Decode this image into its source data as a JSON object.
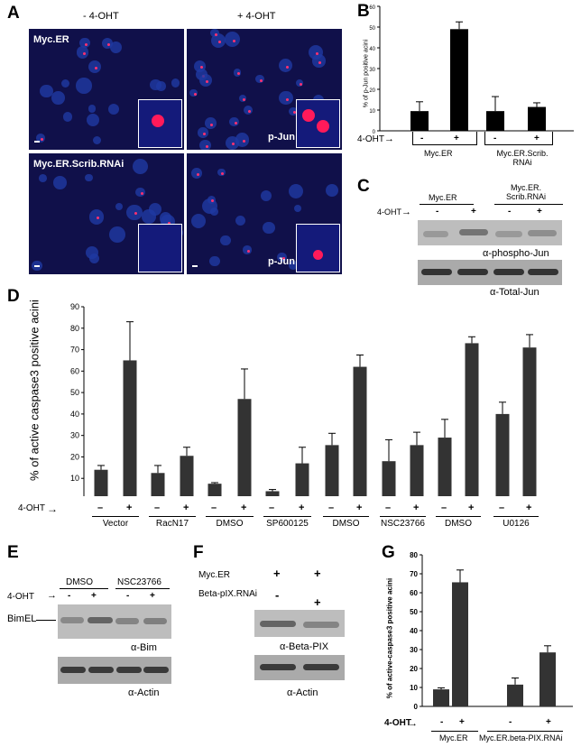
{
  "panel_letters": [
    "A",
    "B",
    "C",
    "D",
    "E",
    "F",
    "G"
  ],
  "A": {
    "col_headers": [
      "- 4-OHT",
      "+ 4-OHT"
    ],
    "row_labels": [
      "Myc.ER",
      "Myc.ER.Scrib.RNAi"
    ],
    "stain_label": "p-Jun"
  },
  "B": {
    "ylabel": "% of p-Jun positive acini",
    "treatment": "4-OHT",
    "signs": [
      "-",
      "+",
      "-",
      "+"
    ],
    "groups": [
      "Myc.ER",
      "Myc.ER.Scrib. RNAi"
    ]
  },
  "C": {
    "treatment": "4-OHT",
    "groups": [
      "Myc.ER",
      "Myc.ER. Scrib.RNAi"
    ],
    "signs": [
      "-",
      "+",
      "-",
      "+"
    ],
    "blot_labels": [
      "α-phospho-Jun",
      "α-Total-Jun"
    ]
  },
  "D": {
    "ylabel": "% of active caspase3 positive acini",
    "treatment": "4-OHT",
    "signs": [
      "–",
      "+",
      "–",
      "+",
      "–",
      "+",
      "–",
      "+",
      "–",
      "+",
      "–",
      "+",
      "–",
      "+",
      "–",
      "+"
    ],
    "groups": [
      "Vector",
      "RacN17",
      "DMSO",
      "SP600125",
      "DMSO",
      "NSC23766",
      "DMSO",
      "U0126"
    ]
  },
  "E": {
    "treatment": "4-OHT",
    "groups": [
      "DMSO",
      "NSC23766"
    ],
    "signs": [
      "-",
      "+",
      "-",
      "+"
    ],
    "band_label": "BimEL",
    "blot_labels": [
      "α-Bim",
      "α-Actin"
    ]
  },
  "F": {
    "rows": [
      "Myc.ER",
      "Beta-pIX.RNAi"
    ],
    "row1_signs": [
      "+",
      "+"
    ],
    "row2_signs": [
      "-",
      "+"
    ],
    "blot_labels": [
      "α-Beta-PIX",
      "α-Actin"
    ]
  },
  "G": {
    "ylabel": "% of active-caspase3 positive acini",
    "treatment": "4-OHT",
    "signs": [
      "-",
      "+",
      "-",
      "+"
    ],
    "groups": [
      "Myc.ER",
      "Myc.ER.beta-PIX.RNAi"
    ]
  },
  "chart_data": [
    {
      "id": "B",
      "type": "bar",
      "categories": [
        "-",
        "+",
        "-",
        "+"
      ],
      "values": [
        9.5,
        49,
        9.5,
        11.5
      ],
      "errors": [
        4.5,
        3.5,
        7,
        2
      ],
      "ylim": [
        0,
        60
      ],
      "yticks": [
        0,
        10,
        20,
        30,
        40,
        50,
        60
      ],
      "ylabel": "% of p-Jun positive acini",
      "color": "#000000"
    },
    {
      "id": "D",
      "type": "bar",
      "categories": [
        "–",
        "+",
        "–",
        "+",
        "–",
        "+",
        "–",
        "+",
        "–",
        "+",
        "–",
        "+",
        "–",
        "+",
        "–",
        "+"
      ],
      "values": [
        14,
        65,
        12.5,
        20.5,
        7.5,
        47,
        4,
        17,
        25.5,
        62,
        18,
        25.5,
        29,
        73,
        40,
        71
      ],
      "errors": [
        2,
        18,
        3.5,
        4,
        0.5,
        14,
        0.8,
        7.5,
        5.5,
        5.5,
        10,
        6,
        8.5,
        3,
        5.5,
        6
      ],
      "ylim": [
        0,
        90
      ],
      "yticks": [
        0,
        10,
        20,
        30,
        40,
        50,
        60,
        70,
        80,
        90
      ],
      "ylabel": "% of active caspase3 positive acini",
      "color": "#333333"
    },
    {
      "id": "G",
      "type": "bar",
      "categories": [
        "-",
        "+",
        "-",
        "+"
      ],
      "values": [
        9,
        65.5,
        11.5,
        28.5
      ],
      "errors": [
        0.8,
        6.5,
        3.5,
        3.5
      ],
      "ylim": [
        0,
        80
      ],
      "yticks": [
        0,
        10,
        20,
        30,
        40,
        50,
        60,
        70,
        80
      ],
      "ylabel": "% of active-caspase3 positive acini",
      "color": "#333333"
    }
  ]
}
